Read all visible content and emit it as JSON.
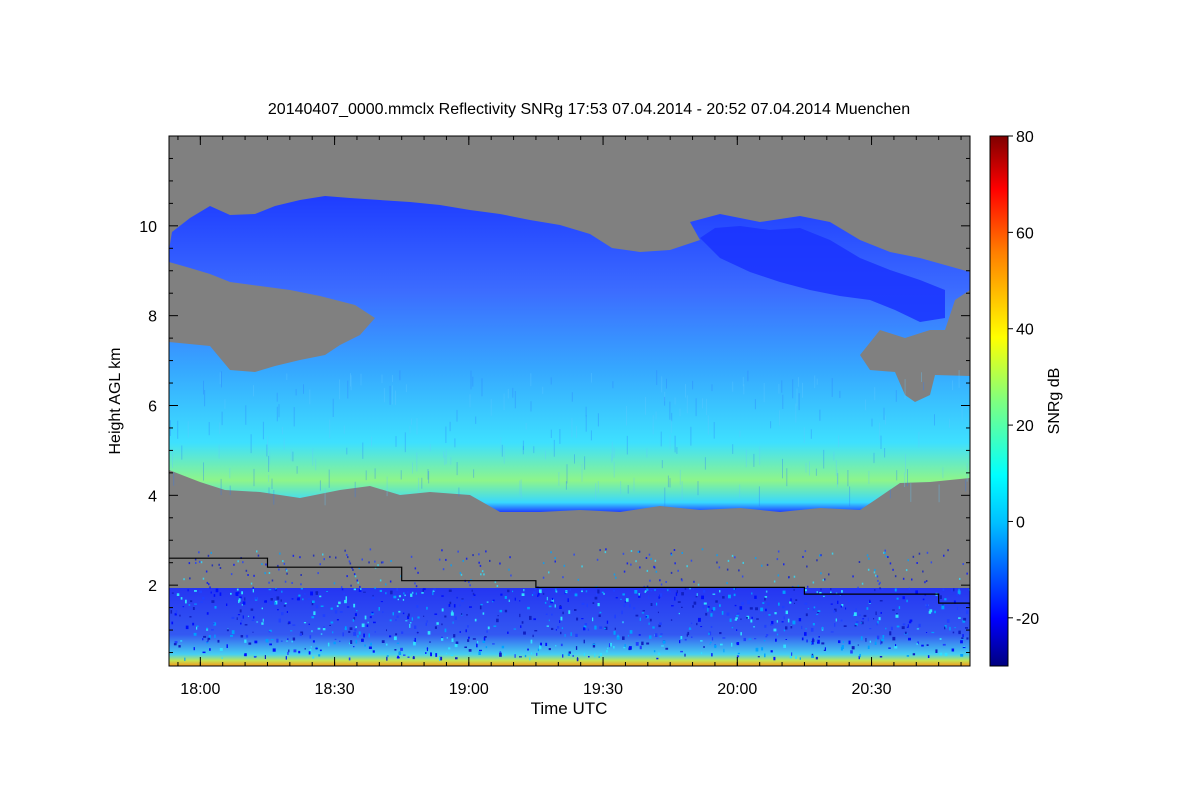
{
  "chart_data": {
    "type": "heatmap",
    "title": "20140407_0000.mmclx Reflectivity SNRg   17:53 07.04.2014 - 20:52 07.04.2014 Muenchen",
    "xlabel": "Time UTC",
    "ylabel": "Height AGL km",
    "x_ticks": [
      "18:00",
      "18:30",
      "19:00",
      "19:30",
      "20:00",
      "20:30"
    ],
    "x_tick_hours": [
      18.0,
      18.5,
      19.0,
      19.5,
      20.0,
      20.5
    ],
    "xlim_hours": [
      17.8833,
      20.8667
    ],
    "y_ticks": [
      "2",
      "4",
      "6",
      "8",
      "10"
    ],
    "y_tick_values": [
      2,
      4,
      6,
      8,
      10
    ],
    "ylim_km": [
      0.2,
      12.0
    ],
    "colorbar": {
      "label": "SNRg dB",
      "ticks": [
        "80",
        "60",
        "40",
        "20",
        "0",
        "-20"
      ],
      "tick_values": [
        80,
        60,
        40,
        20,
        0,
        -20
      ],
      "range": [
        -30,
        80
      ],
      "colormap": [
        "#00007f",
        "#0000ff",
        "#007fff",
        "#00ffff",
        "#7fff7f",
        "#ffff00",
        "#ff7f00",
        "#ff0000",
        "#7f0000"
      ]
    },
    "no_signal_color": "#808080",
    "echo_summary": {
      "cloud_base_km_range": [
        3.5,
        4.5
      ],
      "cloud_top_km_range": [
        7.0,
        10.5
      ],
      "max_snr_band_km": [
        4.0,
        5.0
      ],
      "max_snr_db": 30
    },
    "black_line": {
      "description": "step line",
      "points": [
        {
          "time": 17.8833,
          "km": 2.6
        },
        {
          "time": 18.25,
          "km": 2.6
        },
        {
          "time": 18.25,
          "km": 2.4
        },
        {
          "time": 18.75,
          "km": 2.4
        },
        {
          "time": 18.75,
          "km": 2.1
        },
        {
          "time": 19.25,
          "km": 2.1
        },
        {
          "time": 19.25,
          "km": 1.95
        },
        {
          "time": 20.25,
          "km": 1.95
        },
        {
          "time": 20.25,
          "km": 1.8
        },
        {
          "time": 20.75,
          "km": 1.8
        },
        {
          "time": 20.75,
          "km": 1.6
        },
        {
          "time": 20.8667,
          "km": 1.6
        }
      ]
    }
  }
}
